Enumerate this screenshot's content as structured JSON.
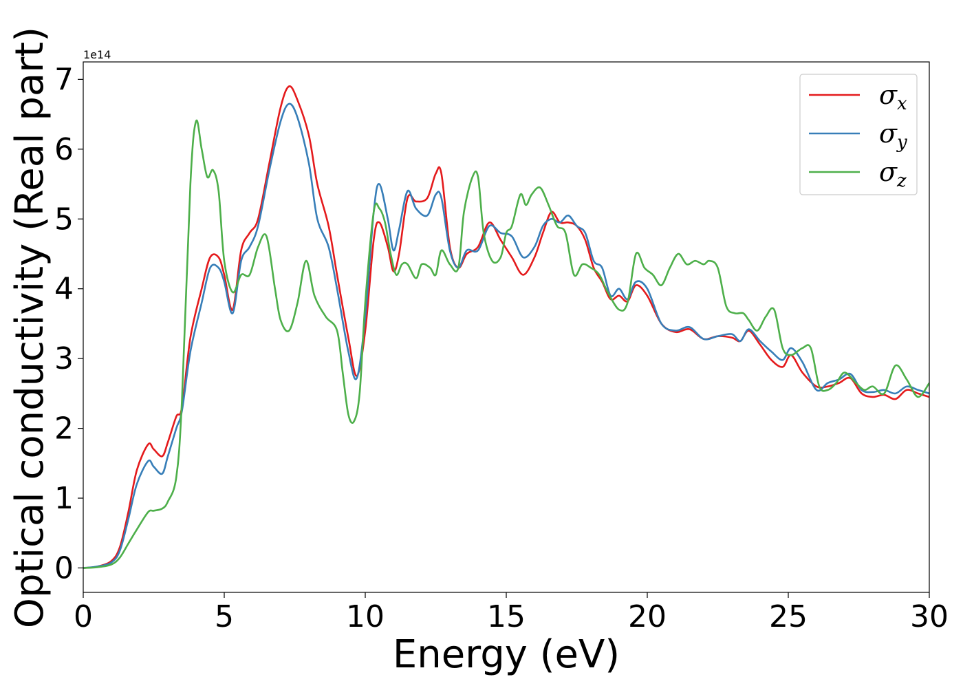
{
  "chart_data": {
    "type": "line",
    "xlabel": "Energy (eV)",
    "ylabel": "Optical conductivity (Real part)",
    "y_offset_label": "1e14",
    "xlim": [
      0,
      30
    ],
    "ylim": [
      -0.35,
      7.25
    ],
    "y_scale_factor": 100000000000000.0,
    "xticks": [
      "0",
      "5",
      "10",
      "15",
      "20",
      "25",
      "30"
    ],
    "xtick_values": [
      0,
      5,
      10,
      15,
      20,
      25,
      30
    ],
    "yticks": [
      "0",
      "1",
      "2",
      "3",
      "4",
      "5",
      "6",
      "7"
    ],
    "ytick_values": [
      0,
      1,
      2,
      3,
      4,
      5,
      6,
      7
    ],
    "grid": false,
    "legend_position": "top-right",
    "series": [
      {
        "name": "σ",
        "subscript": "x",
        "color": "#e41a1c",
        "x": [
          0,
          0.5,
          1.0,
          1.3,
          1.6,
          1.9,
          2.3,
          2.5,
          2.8,
          3.0,
          3.3,
          3.5,
          3.8,
          4.2,
          4.5,
          4.8,
          5.0,
          5.3,
          5.6,
          5.9,
          6.2,
          6.6,
          7.0,
          7.3,
          7.6,
          8.0,
          8.3,
          8.7,
          9.0,
          9.4,
          9.7,
          10.0,
          10.3,
          10.5,
          10.8,
          11.0,
          11.2,
          11.5,
          11.8,
          12.2,
          12.5,
          12.7,
          13.0,
          13.3,
          13.6,
          14.0,
          14.4,
          14.8,
          15.2,
          15.6,
          16.0,
          16.3,
          16.6,
          16.9,
          17.2,
          17.5,
          17.8,
          18.1,
          18.4,
          18.7,
          19.0,
          19.3,
          19.6,
          20.0,
          20.5,
          21.0,
          21.5,
          22.0,
          22.5,
          23.0,
          23.3,
          23.6,
          24.0,
          24.4,
          24.8,
          25.1,
          25.5,
          26.0,
          26.4,
          26.8,
          27.2,
          27.6,
          28.0,
          28.4,
          28.8,
          29.2,
          29.6,
          30.0
        ],
        "y": [
          0,
          0.02,
          0.1,
          0.3,
          0.8,
          1.4,
          1.77,
          1.7,
          1.6,
          1.8,
          2.17,
          2.3,
          3.3,
          4.0,
          4.45,
          4.45,
          4.2,
          3.7,
          4.55,
          4.8,
          5.0,
          5.8,
          6.6,
          6.9,
          6.7,
          6.2,
          5.5,
          4.9,
          4.2,
          3.3,
          2.75,
          3.4,
          4.7,
          4.95,
          4.6,
          4.25,
          4.5,
          5.3,
          5.25,
          5.3,
          5.65,
          5.65,
          4.6,
          4.3,
          4.5,
          4.6,
          4.95,
          4.7,
          4.45,
          4.2,
          4.45,
          4.8,
          5.1,
          4.95,
          4.95,
          4.9,
          4.7,
          4.3,
          4.1,
          3.85,
          3.9,
          3.82,
          4.05,
          3.9,
          3.5,
          3.38,
          3.42,
          3.28,
          3.32,
          3.3,
          3.25,
          3.4,
          3.2,
          2.98,
          2.88,
          3.05,
          2.8,
          2.6,
          2.6,
          2.65,
          2.72,
          2.5,
          2.45,
          2.48,
          2.42,
          2.55,
          2.5,
          2.45
        ]
      },
      {
        "name": "σ",
        "subscript": "y",
        "color": "#377eb8",
        "x": [
          0,
          0.5,
          1.0,
          1.3,
          1.6,
          1.9,
          2.3,
          2.5,
          2.8,
          3.0,
          3.3,
          3.5,
          3.8,
          4.2,
          4.5,
          4.8,
          5.0,
          5.3,
          5.6,
          5.9,
          6.2,
          6.6,
          7.0,
          7.3,
          7.6,
          8.0,
          8.3,
          8.7,
          9.0,
          9.4,
          9.7,
          10.0,
          10.3,
          10.5,
          10.8,
          11.0,
          11.2,
          11.5,
          11.8,
          12.2,
          12.5,
          12.7,
          13.0,
          13.3,
          13.6,
          14.0,
          14.4,
          14.8,
          15.2,
          15.6,
          16.0,
          16.3,
          16.6,
          16.9,
          17.2,
          17.5,
          17.8,
          18.1,
          18.4,
          18.7,
          19.0,
          19.3,
          19.6,
          20.0,
          20.5,
          21.0,
          21.5,
          22.0,
          22.5,
          23.0,
          23.3,
          23.6,
          24.0,
          24.4,
          24.8,
          25.1,
          25.5,
          26.0,
          26.4,
          26.8,
          27.2,
          27.6,
          28.0,
          28.4,
          28.8,
          29.2,
          29.6,
          30.0
        ],
        "y": [
          0,
          0.02,
          0.08,
          0.25,
          0.7,
          1.2,
          1.53,
          1.45,
          1.35,
          1.6,
          2.0,
          2.25,
          3.1,
          3.8,
          4.3,
          4.3,
          4.1,
          3.65,
          4.4,
          4.6,
          4.9,
          5.7,
          6.4,
          6.65,
          6.45,
          5.8,
          5.0,
          4.6,
          4.0,
          3.1,
          2.72,
          3.6,
          5.1,
          5.5,
          5.0,
          4.55,
          4.85,
          5.4,
          5.15,
          5.05,
          5.35,
          5.3,
          4.55,
          4.3,
          4.55,
          4.55,
          4.9,
          4.8,
          4.75,
          4.45,
          4.6,
          4.9,
          5.0,
          4.95,
          5.05,
          4.9,
          4.8,
          4.4,
          4.3,
          3.9,
          4.0,
          3.85,
          4.1,
          4.0,
          3.5,
          3.4,
          3.45,
          3.28,
          3.32,
          3.35,
          3.25,
          3.42,
          3.25,
          3.1,
          2.98,
          3.15,
          2.95,
          2.55,
          2.65,
          2.7,
          2.78,
          2.55,
          2.52,
          2.55,
          2.5,
          2.6,
          2.55,
          2.5
        ]
      },
      {
        "name": "σ",
        "subscript": "z",
        "color": "#4daf4a",
        "x": [
          0,
          0.5,
          1.0,
          1.3,
          1.6,
          1.9,
          2.3,
          2.5,
          2.8,
          3.0,
          3.3,
          3.5,
          3.8,
          4.0,
          4.2,
          4.4,
          4.6,
          4.8,
          5.0,
          5.3,
          5.6,
          5.9,
          6.2,
          6.5,
          6.8,
          7.0,
          7.3,
          7.6,
          7.9,
          8.2,
          8.6,
          9.0,
          9.2,
          9.4,
          9.6,
          9.8,
          10.0,
          10.3,
          10.5,
          10.7,
          10.9,
          11.1,
          11.3,
          11.5,
          11.8,
          12.0,
          12.3,
          12.5,
          12.7,
          13.0,
          13.3,
          13.5,
          13.8,
          14.0,
          14.2,
          14.5,
          14.8,
          15.0,
          15.2,
          15.5,
          15.7,
          15.9,
          16.2,
          16.5,
          16.8,
          17.1,
          17.4,
          17.7,
          18.0,
          18.3,
          18.6,
          19.0,
          19.3,
          19.6,
          19.9,
          20.2,
          20.5,
          20.8,
          21.1,
          21.4,
          21.7,
          22.0,
          22.2,
          22.5,
          22.8,
          23.1,
          23.4,
          23.6,
          23.9,
          24.2,
          24.5,
          24.8,
          25.1,
          25.5,
          25.8,
          26.1,
          26.4,
          26.7,
          27.0,
          27.4,
          27.7,
          28.0,
          28.4,
          28.8,
          29.2,
          29.6,
          30.0
        ],
        "y": [
          0,
          0.01,
          0.05,
          0.15,
          0.35,
          0.55,
          0.8,
          0.82,
          0.85,
          0.95,
          1.3,
          2.4,
          5.5,
          6.4,
          6.0,
          5.6,
          5.7,
          5.4,
          4.4,
          3.95,
          4.2,
          4.2,
          4.6,
          4.75,
          4.0,
          3.55,
          3.4,
          3.8,
          4.4,
          3.9,
          3.6,
          3.4,
          2.8,
          2.2,
          2.1,
          2.5,
          3.8,
          5.1,
          5.15,
          4.95,
          4.5,
          4.2,
          4.35,
          4.35,
          4.15,
          4.35,
          4.3,
          4.2,
          4.55,
          4.35,
          4.3,
          5.1,
          5.6,
          5.6,
          4.8,
          4.4,
          4.45,
          4.8,
          4.9,
          5.35,
          5.2,
          5.35,
          5.45,
          5.2,
          4.9,
          4.8,
          4.2,
          4.35,
          4.3,
          4.2,
          3.95,
          3.7,
          3.8,
          4.5,
          4.3,
          4.2,
          4.05,
          4.3,
          4.5,
          4.35,
          4.4,
          4.35,
          4.4,
          4.3,
          3.75,
          3.65,
          3.65,
          3.55,
          3.4,
          3.6,
          3.7,
          3.15,
          3.05,
          3.15,
          3.15,
          2.6,
          2.55,
          2.65,
          2.8,
          2.65,
          2.55,
          2.6,
          2.5,
          2.9,
          2.7,
          2.45,
          2.65
        ]
      }
    ]
  }
}
